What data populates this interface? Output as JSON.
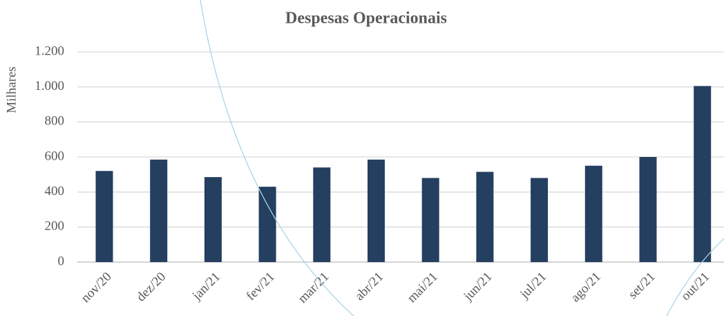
{
  "chart_data": {
    "type": "bar",
    "title": "Despesas Operacionais",
    "y_label": "Milhares",
    "categories": [
      "nov/20",
      "dez/20",
      "jan/21",
      "fev/21",
      "mar/21",
      "abr/21",
      "mai/21",
      "jun/21",
      "jul/21",
      "ago/21",
      "set/21",
      "out/21"
    ],
    "values": [
      520,
      585,
      485,
      430,
      540,
      585,
      480,
      515,
      480,
      550,
      600,
      1005
    ],
    "color": "#243f60",
    "ylim": [
      0,
      1200
    ],
    "yticks": [
      0,
      200,
      400,
      600,
      800,
      {
        "value": 1000,
        "label": "1.000"
      },
      {
        "value": 1200,
        "label": "1.200"
      }
    ],
    "grid": true
  }
}
